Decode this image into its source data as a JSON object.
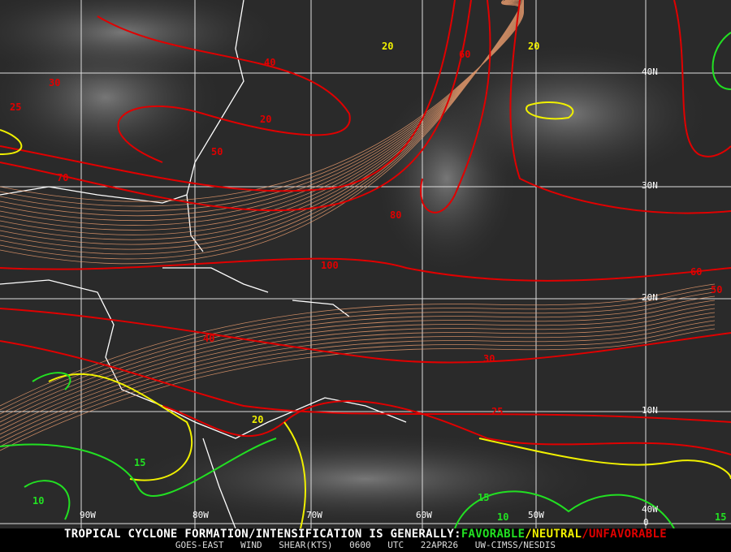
{
  "title_prefix": "TROPICAL CYCLONE FORMATION/INTENSIFICATION IS GENERALLY:",
  "legend": {
    "favorable": "FAVORABLE",
    "neutral": "NEUTRAL",
    "unfavorable": "UNFAVORABLE",
    "sep": "/"
  },
  "colors": {
    "favorable": "#22e022",
    "neutral": "#f0f000",
    "unfavorable": "#e00000",
    "streamlines": "#f0a070"
  },
  "subtitle": {
    "product": "GOES-EAST WIND SHEAR(KTS)",
    "time": "0600 UTC",
    "date": "22APR26",
    "source": "UW-CIMSS/NESDIS"
  },
  "lat_labels": [
    "40N",
    "30N",
    "20N",
    "10N",
    "0"
  ],
  "lon_labels": [
    "90W",
    "80W",
    "70W",
    "60W",
    "50W",
    "40W"
  ],
  "contour_labels": [
    {
      "v": "30",
      "c": "unfavorable"
    },
    {
      "v": "25",
      "c": "unfavorable"
    },
    {
      "v": "20",
      "c": "unfavorable"
    },
    {
      "v": "40",
      "c": "unfavorable"
    },
    {
      "v": "50",
      "c": "unfavorable"
    },
    {
      "v": "60",
      "c": "unfavorable"
    },
    {
      "v": "70",
      "c": "unfavorable"
    },
    {
      "v": "80",
      "c": "unfavorable"
    },
    {
      "v": "100",
      "c": "unfavorable"
    },
    {
      "v": "60",
      "c": "unfavorable"
    },
    {
      "v": "50",
      "c": "unfavorable"
    },
    {
      "v": "40",
      "c": "unfavorable"
    },
    {
      "v": "30",
      "c": "unfavorable"
    },
    {
      "v": "25",
      "c": "unfavorable"
    },
    {
      "v": "20",
      "c": "neutral"
    },
    {
      "v": "20",
      "c": "neutral"
    },
    {
      "v": "20",
      "c": "neutral"
    },
    {
      "v": "15",
      "c": "favorable"
    },
    {
      "v": "15",
      "c": "favorable"
    },
    {
      "v": "10",
      "c": "favorable"
    },
    {
      "v": "10",
      "c": "favorable"
    },
    {
      "v": "15",
      "c": "favorable"
    }
  ]
}
